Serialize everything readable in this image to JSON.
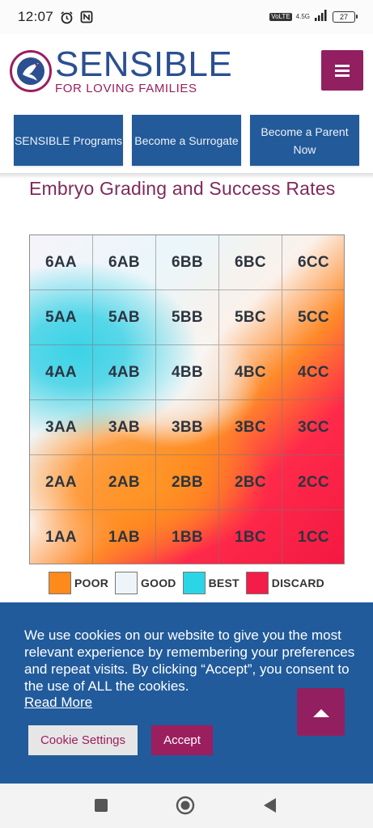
{
  "status_bar": {
    "time": "12:07",
    "network_badge": "VoLTE",
    "network_type": "4.5G",
    "battery": "27"
  },
  "header": {
    "logo_title": "SENSIBLE",
    "logo_subtitle": "FOR LOVING FAMILIES",
    "menu_icon": "hamburger-menu-icon",
    "menu_color": "#922060"
  },
  "nav": {
    "items": [
      {
        "label": "SENSIBLE Programs"
      },
      {
        "label": "Become a Surrogate"
      },
      {
        "label": "Become a Parent Now"
      }
    ]
  },
  "page": {
    "heading": "Embryo Grading and Success Rates"
  },
  "grid": {
    "rows": [
      [
        "6AA",
        "6AB",
        "6BB",
        "6BC",
        "6CC"
      ],
      [
        "5AA",
        "5AB",
        "5BB",
        "5BC",
        "5CC"
      ],
      [
        "4AA",
        "4AB",
        "4BB",
        "4BC",
        "4CC"
      ],
      [
        "3AA",
        "3AB",
        "3BB",
        "3BC",
        "3CC"
      ],
      [
        "2AA",
        "2AB",
        "2BB",
        "2BC",
        "2CC"
      ],
      [
        "1AA",
        "1AB",
        "1BB",
        "1BC",
        "1CC"
      ]
    ]
  },
  "legend": [
    {
      "label": "POOR",
      "color": "#ff8a1c"
    },
    {
      "label": "GOOD",
      "color": "#eef4f8"
    },
    {
      "label": "BEST",
      "color": "#2ad6e6"
    },
    {
      "label": "DISCARD",
      "color": "#f41c48"
    }
  ],
  "cookie": {
    "text": "We use cookies on our website to give you the most relevant experience by remembering your preferences and repeat visits. By clicking “Accept”, you consent to the use of ALL the cookies.",
    "read_more": "Read More",
    "settings_label": "Cookie Settings",
    "accept_label": "Accept",
    "scroll_top_icon": "chevron-up-icon"
  },
  "system_nav": {
    "icons": [
      "recent-apps-icon",
      "home-icon",
      "back-icon"
    ]
  },
  "colors": {
    "brand_blue": "#225a9a",
    "brand_magenta": "#922060",
    "heading": "#7e2a5c"
  }
}
